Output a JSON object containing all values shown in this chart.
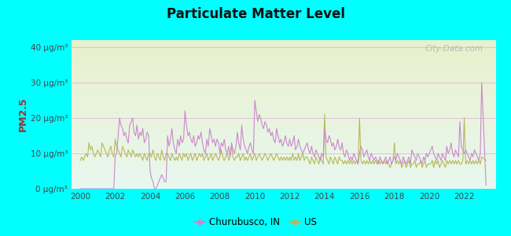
{
  "title": "Particulate Matter Level",
  "ylabel": "PM2.5",
  "background_color": "#00FFFF",
  "plot_bg_top": "#e8f8f0",
  "plot_bg_bottom": "#e8f0cc",
  "churubusco_color": "#cc88cc",
  "us_color": "#b8b855",
  "ylim": [
    0,
    42
  ],
  "xlim": [
    1999.5,
    2023.8
  ],
  "yticks": [
    0,
    10,
    20,
    30,
    40
  ],
  "ytick_labels": [
    "0 μg/m³",
    "10 μg/m³",
    "20 μg/m³",
    "30 μg/m³",
    "40 μg/m³"
  ],
  "xticks": [
    2000,
    2002,
    2004,
    2006,
    2008,
    2010,
    2012,
    2014,
    2016,
    2018,
    2020,
    2022
  ],
  "legend_churubusco": "Churubusco, IN",
  "legend_us": "US",
  "watermark": "City-Data.com",
  "churubusco_x": [
    2000.0,
    2000.08,
    2000.17,
    2000.25,
    2000.33,
    2000.42,
    2000.5,
    2000.58,
    2000.67,
    2000.75,
    2000.83,
    2000.92,
    2001.0,
    2001.08,
    2001.17,
    2001.25,
    2001.33,
    2001.42,
    2001.5,
    2001.58,
    2001.67,
    2001.75,
    2001.83,
    2001.92,
    2002.0,
    2002.08,
    2002.17,
    2002.25,
    2002.33,
    2002.42,
    2002.5,
    2002.58,
    2002.67,
    2002.75,
    2002.83,
    2002.92,
    2003.0,
    2003.08,
    2003.17,
    2003.25,
    2003.33,
    2003.42,
    2003.5,
    2003.58,
    2003.67,
    2003.75,
    2003.83,
    2003.92,
    2004.0,
    2004.08,
    2004.17,
    2004.25,
    2004.33,
    2004.42,
    2004.5,
    2004.58,
    2004.67,
    2004.75,
    2004.83,
    2004.92,
    2005.0,
    2005.08,
    2005.17,
    2005.25,
    2005.33,
    2005.42,
    2005.5,
    2005.58,
    2005.67,
    2005.75,
    2005.83,
    2005.92,
    2006.0,
    2006.08,
    2006.17,
    2006.25,
    2006.33,
    2006.42,
    2006.5,
    2006.58,
    2006.67,
    2006.75,
    2006.83,
    2006.92,
    2007.0,
    2007.08,
    2007.17,
    2007.25,
    2007.33,
    2007.42,
    2007.5,
    2007.58,
    2007.67,
    2007.75,
    2007.83,
    2007.92,
    2008.0,
    2008.08,
    2008.17,
    2008.25,
    2008.33,
    2008.42,
    2008.5,
    2008.58,
    2008.67,
    2008.75,
    2008.83,
    2008.92,
    2009.0,
    2009.08,
    2009.17,
    2009.25,
    2009.33,
    2009.42,
    2009.5,
    2009.58,
    2009.67,
    2009.75,
    2009.83,
    2009.92,
    2010.0,
    2010.08,
    2010.17,
    2010.25,
    2010.33,
    2010.42,
    2010.5,
    2010.58,
    2010.67,
    2010.75,
    2010.83,
    2010.92,
    2011.0,
    2011.08,
    2011.17,
    2011.25,
    2011.33,
    2011.42,
    2011.5,
    2011.58,
    2011.67,
    2011.75,
    2011.83,
    2011.92,
    2012.0,
    2012.08,
    2012.17,
    2012.25,
    2012.33,
    2012.42,
    2012.5,
    2012.58,
    2012.67,
    2012.75,
    2012.83,
    2012.92,
    2013.0,
    2013.08,
    2013.17,
    2013.25,
    2013.33,
    2013.42,
    2013.5,
    2013.58,
    2013.67,
    2013.75,
    2013.83,
    2013.92,
    2014.0,
    2014.08,
    2014.17,
    2014.25,
    2014.33,
    2014.42,
    2014.5,
    2014.58,
    2014.67,
    2014.75,
    2014.83,
    2014.92,
    2015.0,
    2015.08,
    2015.17,
    2015.25,
    2015.33,
    2015.42,
    2015.5,
    2015.58,
    2015.67,
    2015.75,
    2015.83,
    2015.92,
    2016.0,
    2016.08,
    2016.17,
    2016.25,
    2016.33,
    2016.42,
    2016.5,
    2016.58,
    2016.67,
    2016.75,
    2016.83,
    2016.92,
    2017.0,
    2017.08,
    2017.17,
    2017.25,
    2017.33,
    2017.42,
    2017.5,
    2017.58,
    2017.67,
    2017.75,
    2017.83,
    2017.92,
    2018.0,
    2018.08,
    2018.17,
    2018.25,
    2018.33,
    2018.42,
    2018.5,
    2018.58,
    2018.67,
    2018.75,
    2018.83,
    2018.92,
    2019.0,
    2019.08,
    2019.17,
    2019.25,
    2019.33,
    2019.42,
    2019.5,
    2019.58,
    2019.67,
    2019.75,
    2019.83,
    2019.92,
    2020.0,
    2020.08,
    2020.17,
    2020.25,
    2020.33,
    2020.42,
    2020.5,
    2020.58,
    2020.67,
    2020.75,
    2020.83,
    2020.92,
    2021.0,
    2021.08,
    2021.17,
    2021.25,
    2021.33,
    2021.42,
    2021.5,
    2021.58,
    2021.67,
    2021.75,
    2021.83,
    2021.92,
    2022.0,
    2022.08,
    2022.17,
    2022.25,
    2022.33,
    2022.42,
    2022.5,
    2022.58,
    2022.67,
    2022.75,
    2022.83,
    2022.92,
    2023.0,
    2023.25
  ],
  "churubusco_y": [
    0,
    0,
    0,
    0,
    0,
    0,
    0,
    0,
    0,
    0,
    0,
    0,
    0,
    0,
    0,
    0,
    0,
    0,
    0,
    0,
    0,
    0,
    0,
    0,
    9,
    10,
    15,
    20,
    18,
    17,
    15,
    16,
    14,
    13,
    18,
    19,
    20,
    16,
    15,
    18,
    14,
    16,
    15,
    17,
    13,
    14,
    16,
    15,
    5,
    3,
    2,
    0,
    0,
    1,
    2,
    3,
    4,
    3,
    2,
    2,
    15,
    12,
    14,
    17,
    13,
    11,
    10,
    14,
    12,
    15,
    13,
    14,
    22,
    18,
    15,
    16,
    14,
    13,
    15,
    12,
    13,
    15,
    14,
    16,
    13,
    11,
    10,
    14,
    12,
    17,
    15,
    13,
    14,
    12,
    14,
    13,
    10,
    13,
    12,
    14,
    11,
    10,
    12,
    9,
    13,
    11,
    10,
    12,
    16,
    13,
    11,
    18,
    14,
    12,
    11,
    10,
    12,
    13,
    11,
    10,
    25,
    22,
    19,
    21,
    20,
    18,
    17,
    19,
    18,
    16,
    17,
    15,
    16,
    14,
    13,
    17,
    15,
    13,
    14,
    12,
    13,
    15,
    13,
    12,
    14,
    12,
    13,
    15,
    11,
    12,
    14,
    12,
    11,
    10,
    11,
    12,
    13,
    11,
    10,
    12,
    10,
    9,
    11,
    10,
    9,
    8,
    10,
    9,
    17,
    14,
    13,
    15,
    14,
    12,
    13,
    11,
    12,
    14,
    12,
    11,
    13,
    10,
    9,
    11,
    10,
    8,
    9,
    8,
    10,
    9,
    8,
    7,
    10,
    12,
    11,
    9,
    10,
    11,
    9,
    8,
    10,
    9,
    8,
    9,
    8,
    7,
    9,
    8,
    7,
    8,
    9,
    7,
    8,
    9,
    7,
    8,
    9,
    8,
    10,
    9,
    8,
    7,
    9,
    8,
    7,
    8,
    9,
    7,
    11,
    10,
    9,
    8,
    10,
    9,
    8,
    7,
    9,
    8,
    10,
    9,
    10,
    11,
    12,
    10,
    9,
    8,
    10,
    9,
    8,
    10,
    9,
    8,
    12,
    10,
    11,
    13,
    10,
    9,
    11,
    10,
    9,
    19,
    12,
    11,
    10,
    11,
    10,
    9,
    8,
    10,
    9,
    11,
    10,
    9,
    8,
    10,
    30,
    1
  ],
  "us_x": [
    2000.0,
    2000.08,
    2000.17,
    2000.25,
    2000.33,
    2000.42,
    2000.5,
    2000.58,
    2000.67,
    2000.75,
    2000.83,
    2000.92,
    2001.0,
    2001.08,
    2001.17,
    2001.25,
    2001.33,
    2001.42,
    2001.5,
    2001.58,
    2001.67,
    2001.75,
    2001.83,
    2001.92,
    2002.0,
    2002.08,
    2002.17,
    2002.25,
    2002.33,
    2002.42,
    2002.5,
    2002.58,
    2002.67,
    2002.75,
    2002.83,
    2002.92,
    2003.0,
    2003.08,
    2003.17,
    2003.25,
    2003.33,
    2003.42,
    2003.5,
    2003.58,
    2003.67,
    2003.75,
    2003.83,
    2003.92,
    2004.0,
    2004.08,
    2004.17,
    2004.25,
    2004.33,
    2004.42,
    2004.5,
    2004.58,
    2004.67,
    2004.75,
    2004.83,
    2004.92,
    2005.0,
    2005.08,
    2005.17,
    2005.25,
    2005.33,
    2005.42,
    2005.5,
    2005.58,
    2005.67,
    2005.75,
    2005.83,
    2005.92,
    2006.0,
    2006.08,
    2006.17,
    2006.25,
    2006.33,
    2006.42,
    2006.5,
    2006.58,
    2006.67,
    2006.75,
    2006.83,
    2006.92,
    2007.0,
    2007.08,
    2007.17,
    2007.25,
    2007.33,
    2007.42,
    2007.5,
    2007.58,
    2007.67,
    2007.75,
    2007.83,
    2007.92,
    2008.0,
    2008.08,
    2008.17,
    2008.25,
    2008.33,
    2008.42,
    2008.5,
    2008.58,
    2008.67,
    2008.75,
    2008.83,
    2008.92,
    2009.0,
    2009.08,
    2009.17,
    2009.25,
    2009.33,
    2009.42,
    2009.5,
    2009.58,
    2009.67,
    2009.75,
    2009.83,
    2009.92,
    2010.0,
    2010.08,
    2010.17,
    2010.25,
    2010.33,
    2010.42,
    2010.5,
    2010.58,
    2010.67,
    2010.75,
    2010.83,
    2010.92,
    2011.0,
    2011.08,
    2011.17,
    2011.25,
    2011.33,
    2011.42,
    2011.5,
    2011.58,
    2011.67,
    2011.75,
    2011.83,
    2011.92,
    2012.0,
    2012.08,
    2012.17,
    2012.25,
    2012.33,
    2012.42,
    2012.5,
    2012.58,
    2012.67,
    2012.75,
    2012.83,
    2012.92,
    2013.0,
    2013.08,
    2013.17,
    2013.25,
    2013.33,
    2013.42,
    2013.5,
    2013.58,
    2013.67,
    2013.75,
    2013.83,
    2013.92,
    2014.0,
    2014.08,
    2014.17,
    2014.25,
    2014.33,
    2014.42,
    2014.5,
    2014.58,
    2014.67,
    2014.75,
    2014.83,
    2014.92,
    2015.0,
    2015.08,
    2015.17,
    2015.25,
    2015.33,
    2015.42,
    2015.5,
    2015.58,
    2015.67,
    2015.75,
    2015.83,
    2015.92,
    2016.0,
    2016.08,
    2016.17,
    2016.25,
    2016.33,
    2016.42,
    2016.5,
    2016.58,
    2016.67,
    2016.75,
    2016.83,
    2016.92,
    2017.0,
    2017.08,
    2017.17,
    2017.25,
    2017.33,
    2017.42,
    2017.5,
    2017.58,
    2017.67,
    2017.75,
    2017.83,
    2017.92,
    2018.0,
    2018.08,
    2018.17,
    2018.25,
    2018.33,
    2018.42,
    2018.5,
    2018.58,
    2018.67,
    2018.75,
    2018.83,
    2018.92,
    2019.0,
    2019.08,
    2019.17,
    2019.25,
    2019.33,
    2019.42,
    2019.5,
    2019.58,
    2019.67,
    2019.75,
    2019.83,
    2019.92,
    2020.0,
    2020.08,
    2020.17,
    2020.25,
    2020.33,
    2020.42,
    2020.5,
    2020.58,
    2020.67,
    2020.75,
    2020.83,
    2020.92,
    2021.0,
    2021.08,
    2021.17,
    2021.25,
    2021.33,
    2021.42,
    2021.5,
    2021.58,
    2021.67,
    2021.75,
    2021.83,
    2021.92,
    2022.0,
    2022.08,
    2022.17,
    2022.25,
    2022.33,
    2022.42,
    2022.5,
    2022.58,
    2022.67,
    2022.75,
    2022.83,
    2022.92,
    2023.0,
    2023.25
  ],
  "us_y": [
    8,
    9,
    8,
    9,
    10,
    9,
    13,
    11,
    12,
    10,
    9,
    10,
    11,
    10,
    9,
    13,
    12,
    11,
    10,
    9,
    11,
    12,
    10,
    9,
    14,
    12,
    11,
    10,
    9,
    12,
    11,
    10,
    9,
    11,
    10,
    9,
    11,
    10,
    9,
    10,
    9,
    10,
    9,
    8,
    10,
    9,
    8,
    10,
    10,
    9,
    11,
    9,
    8,
    10,
    9,
    8,
    11,
    9,
    8,
    10,
    10,
    9,
    8,
    10,
    9,
    8,
    9,
    8,
    10,
    9,
    8,
    10,
    9,
    10,
    8,
    9,
    10,
    8,
    9,
    10,
    8,
    9,
    10,
    9,
    10,
    8,
    9,
    10,
    8,
    9,
    10,
    8,
    9,
    10,
    9,
    8,
    9,
    11,
    9,
    8,
    9,
    10,
    8,
    9,
    12,
    9,
    8,
    9,
    9,
    10,
    8,
    9,
    10,
    8,
    9,
    8,
    9,
    10,
    8,
    9,
    10,
    8,
    9,
    10,
    9,
    8,
    9,
    10,
    9,
    8,
    9,
    10,
    9,
    8,
    9,
    10,
    9,
    8,
    9,
    8,
    9,
    8,
    9,
    8,
    9,
    8,
    10,
    8,
    9,
    8,
    10,
    8,
    9,
    10,
    8,
    9,
    9,
    8,
    7,
    9,
    8,
    7,
    9,
    8,
    7,
    9,
    8,
    7,
    21,
    9,
    8,
    7,
    9,
    8,
    7,
    9,
    8,
    7,
    9,
    8,
    8,
    7,
    8,
    7,
    8,
    7,
    8,
    7,
    8,
    7,
    8,
    7,
    20,
    8,
    7,
    8,
    7,
    8,
    7,
    8,
    7,
    8,
    7,
    8,
    7,
    8,
    7,
    8,
    7,
    8,
    7,
    8,
    7,
    6,
    7,
    8,
    13,
    7,
    8,
    7,
    8,
    6,
    7,
    8,
    6,
    7,
    8,
    6,
    7,
    7,
    8,
    6,
    7,
    7,
    8,
    6,
    7,
    8,
    6,
    7,
    7,
    7,
    8,
    6,
    8,
    7,
    8,
    6,
    7,
    8,
    7,
    6,
    8,
    7,
    8,
    7,
    8,
    7,
    8,
    7,
    8,
    7,
    7,
    8,
    20,
    7,
    8,
    7,
    8,
    7,
    8,
    7,
    8,
    7,
    8,
    7,
    9,
    8
  ]
}
